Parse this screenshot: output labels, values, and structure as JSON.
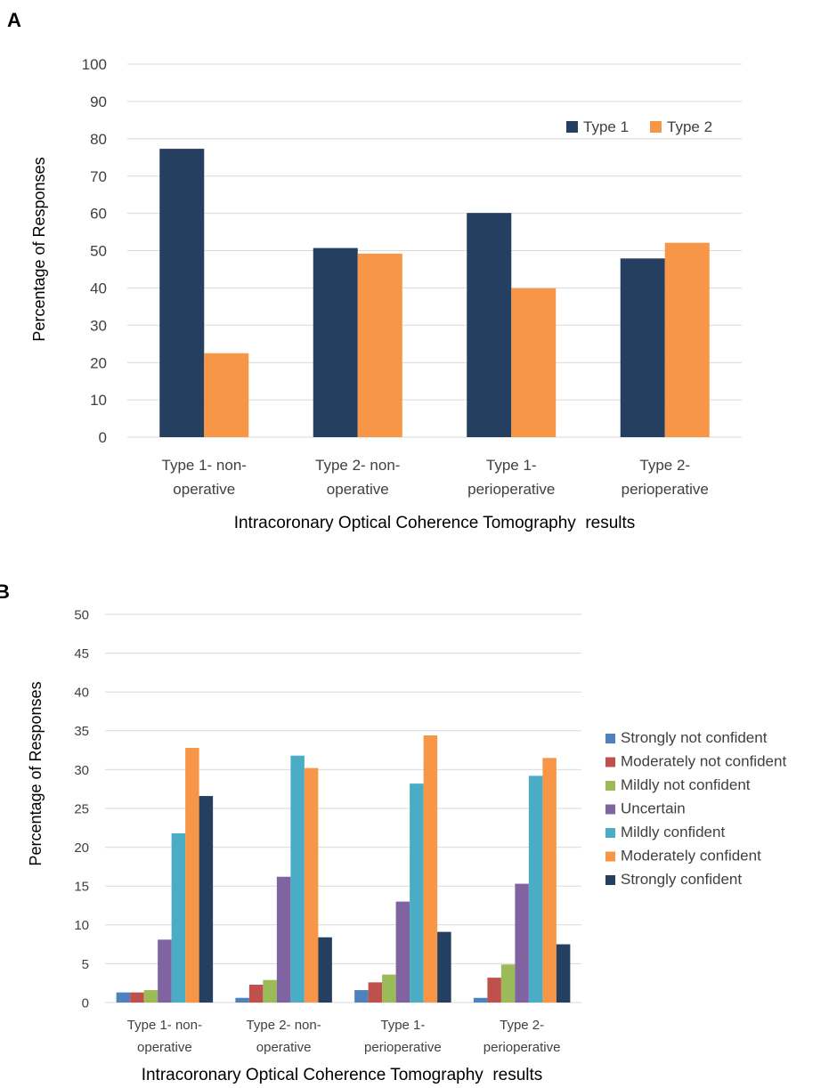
{
  "panels": {
    "a": {
      "letter": "A"
    },
    "b": {
      "letter": "B"
    }
  },
  "chart_data": [
    {
      "type": "bar",
      "panel": "A",
      "title": "",
      "categories": [
        [
          "Type 1- non-",
          "operative"
        ],
        [
          "Type 2- non-",
          "operative"
        ],
        [
          "Type 1-",
          "perioperative"
        ],
        [
          "Type 2-",
          "perioperative"
        ]
      ],
      "series": [
        {
          "name": "Type 1",
          "color": "#243f60",
          "values": [
            77.3,
            50.7,
            60.1,
            47.9
          ]
        },
        {
          "name": "Type 2",
          "color": "#f79646",
          "values": [
            22.5,
            49.2,
            39.9,
            52.1
          ]
        }
      ],
      "xlabel": "Intracoronary Optical Coherence Tomography  results",
      "ylabel": "Percentage of Responses",
      "ylim": [
        0,
        100
      ],
      "yticks": [
        0,
        10,
        20,
        30,
        40,
        50,
        60,
        70,
        80,
        90,
        100
      ],
      "grid": true,
      "legend": "top-right"
    },
    {
      "type": "bar",
      "panel": "B",
      "title": "",
      "categories": [
        [
          "Type 1- non-",
          "operative"
        ],
        [
          "Type 2- non-",
          "operative"
        ],
        [
          "Type 1-",
          "perioperative"
        ],
        [
          "Type 2-",
          "perioperative"
        ]
      ],
      "series": [
        {
          "name": "Strongly not confident",
          "color": "#4f81bd",
          "values": [
            1.3,
            0.6,
            1.6,
            0.6
          ]
        },
        {
          "name": "Moderately not confident",
          "color": "#c0504d",
          "values": [
            1.3,
            2.3,
            2.6,
            3.2
          ]
        },
        {
          "name": "Mildly not confident",
          "color": "#9bbb59",
          "values": [
            1.6,
            2.9,
            3.6,
            4.9
          ]
        },
        {
          "name": "Uncertain",
          "color": "#8064a2",
          "values": [
            8.1,
            16.2,
            13.0,
            15.3
          ]
        },
        {
          "name": "Mildly confident",
          "color": "#4bacc6",
          "values": [
            21.8,
            31.8,
            28.2,
            29.2
          ]
        },
        {
          "name": "Moderately confident",
          "color": "#f79646",
          "values": [
            32.8,
            30.2,
            34.4,
            31.5
          ]
        },
        {
          "name": "Strongly confident",
          "color": "#243f60",
          "values": [
            26.6,
            8.4,
            9.1,
            7.5
          ]
        }
      ],
      "xlabel": "Intracoronary Optical Coherence Tomography  results",
      "ylabel": "Percentage of Responses",
      "ylim": [
        0,
        50
      ],
      "yticks": [
        0,
        5,
        10,
        15,
        20,
        25,
        30,
        35,
        40,
        45,
        50
      ],
      "grid": true,
      "legend": "right"
    }
  ]
}
